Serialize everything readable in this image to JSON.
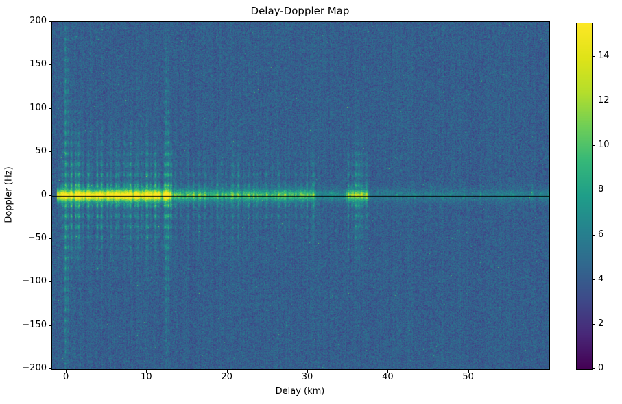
{
  "chart_data": {
    "type": "heatmap",
    "title": "Delay-Doppler Map",
    "xlabel": "Delay (km)",
    "ylabel": "Doppler (Hz)",
    "xlim": [
      -1.8,
      60
    ],
    "ylim": [
      -200,
      200
    ],
    "xticks": [
      0,
      10,
      20,
      30,
      40,
      50
    ],
    "yticks": [
      -200,
      -150,
      -100,
      -50,
      0,
      50,
      100,
      150,
      200
    ],
    "colormap": "viridis",
    "colorbar": {
      "vmin": 0,
      "vmax": 15.5,
      "ticks": [
        0,
        2,
        4,
        6,
        8,
        10,
        12,
        14
      ]
    },
    "background_level": 4.2,
    "noise_std": 0.9,
    "zero_doppler_line": {
      "doppler_hz": 0,
      "color": "#000000"
    },
    "features": {
      "seed": 42,
      "comb_period_hz": 12,
      "main_band": {
        "doppler_hz": 0,
        "halfwidth_hz": 7,
        "segments": [
          {
            "delay_range": [
              -1.2,
              13
            ],
            "amplitude": 11
          },
          {
            "delay_range": [
              13,
              31
            ],
            "amplitude": 5.5
          },
          {
            "delay_range": [
              31,
              34.8
            ],
            "amplitude": 2.5
          },
          {
            "delay_range": [
              34.8,
              37.5
            ],
            "amplitude": 7
          },
          {
            "delay_range": [
              37.5,
              60
            ],
            "amplitude": 1.6
          }
        ]
      },
      "stripe_clusters": [
        {
          "delay_range": [
            -0.6,
            13
          ],
          "spacing_km": 0.5,
          "amp": [
            2.5,
            6.0
          ],
          "extent_hz": [
            40,
            70
          ]
        },
        {
          "delay_range": [
            13,
            31
          ],
          "spacing_km": 0.65,
          "amp": [
            1.2,
            3.5
          ],
          "extent_hz": [
            30,
            55
          ]
        },
        {
          "delay_range": [
            34.8,
            37.6
          ],
          "spacing_km": 0.5,
          "amp": [
            2.5,
            4.5
          ],
          "extent_hz": [
            45,
            65
          ]
        },
        {
          "delay_range": [
            40,
            60
          ],
          "spacing_km": 1.6,
          "amp": [
            0.8,
            1.8
          ],
          "extent_hz": [
            8,
            20
          ]
        }
      ],
      "tall_stripes": [
        {
          "delay_km": -0.15,
          "amplitude": 4.5,
          "extent_hz": 210
        },
        {
          "delay_km": 0.2,
          "amplitude": 3.2,
          "extent_hz": 210
        },
        {
          "delay_km": 12.35,
          "amplitude": 3.4,
          "extent_hz": 170
        },
        {
          "delay_km": 12.7,
          "amplitude": 2.4,
          "extent_hz": 170
        }
      ]
    }
  }
}
